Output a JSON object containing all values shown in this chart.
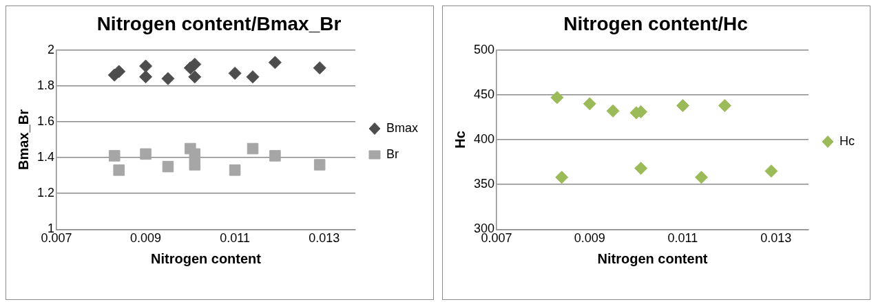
{
  "chart_data": [
    {
      "type": "scatter",
      "title": "Nitrogen content/Bmax_Br",
      "xlabel": "Nitrogen content",
      "ylabel": "Bmax_Br",
      "xlim": [
        0.007,
        0.0137
      ],
      "xticks": [
        0.007,
        0.009,
        0.011,
        0.013
      ],
      "ylim": [
        1,
        2
      ],
      "yticks": [
        1,
        1.2,
        1.4,
        1.6,
        1.8,
        2
      ],
      "grid": "y",
      "legend": "right",
      "series": [
        {
          "name": "Bmax",
          "color": "#4d4d4d",
          "marker": "diamond",
          "x": [
            0.0083,
            0.0084,
            0.009,
            0.009,
            0.0095,
            0.01,
            0.0101,
            0.0101,
            0.011,
            0.0114,
            0.0119,
            0.0129
          ],
          "values": [
            1.86,
            1.88,
            1.91,
            1.85,
            1.84,
            1.9,
            1.92,
            1.85,
            1.87,
            1.85,
            1.93,
            1.9
          ]
        },
        {
          "name": "Br",
          "color": "#a6a6a6",
          "marker": "square",
          "x": [
            0.0083,
            0.0084,
            0.009,
            0.0095,
            0.01,
            0.0101,
            0.0101,
            0.011,
            0.0114,
            0.0119,
            0.0129
          ],
          "values": [
            1.41,
            1.33,
            1.42,
            1.35,
            1.45,
            1.42,
            1.36,
            1.33,
            1.45,
            1.41,
            1.36
          ]
        }
      ]
    },
    {
      "type": "scatter",
      "title": "Nitrogen content/Hc",
      "xlabel": "Nitrogen content",
      "ylabel": "Hc",
      "xlim": [
        0.007,
        0.0137
      ],
      "xticks": [
        0.007,
        0.009,
        0.011,
        0.013
      ],
      "ylim": [
        300,
        500
      ],
      "yticks": [
        300,
        350,
        400,
        450,
        500
      ],
      "grid": "y",
      "legend": "right",
      "series": [
        {
          "name": "Hc",
          "color": "#9bbb59",
          "marker": "diamond",
          "x": [
            0.0083,
            0.0084,
            0.009,
            0.0095,
            0.01,
            0.0101,
            0.0101,
            0.011,
            0.0114,
            0.0119,
            0.0129
          ],
          "values": [
            447,
            358,
            440,
            432,
            430,
            431,
            368,
            438,
            358,
            438,
            365
          ]
        }
      ]
    }
  ]
}
